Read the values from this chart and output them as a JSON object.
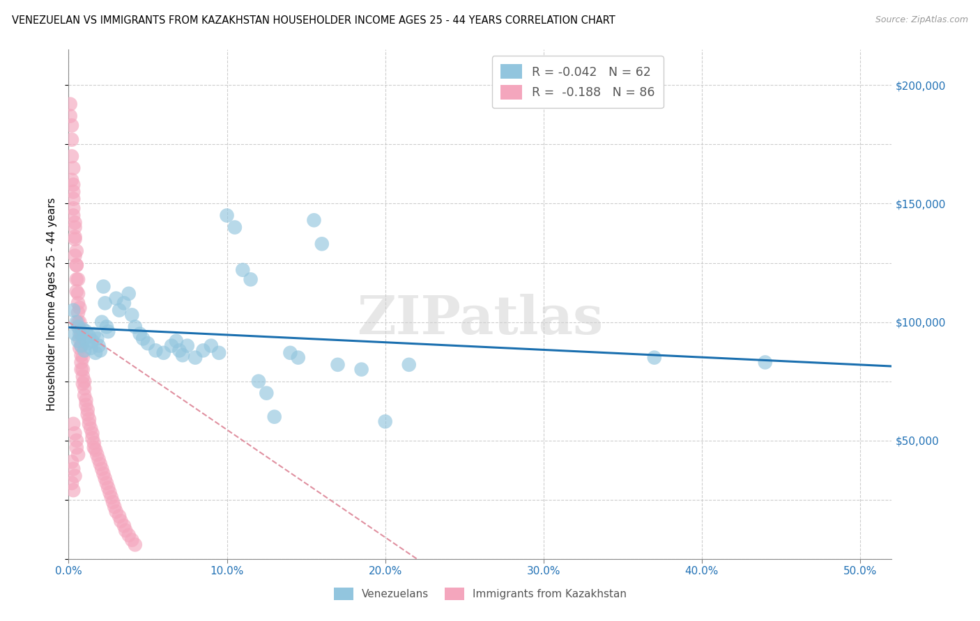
{
  "title": "VENEZUELAN VS IMMIGRANTS FROM KAZAKHSTAN HOUSEHOLDER INCOME AGES 25 - 44 YEARS CORRELATION CHART",
  "source": "Source: ZipAtlas.com",
  "ylabel": "Householder Income Ages 25 - 44 years",
  "xlabel_ticks": [
    "0.0%",
    "10.0%",
    "20.0%",
    "30.0%",
    "40.0%",
    "50.0%"
  ],
  "xlabel_vals": [
    0.0,
    0.1,
    0.2,
    0.3,
    0.4,
    0.5
  ],
  "ytick_labels": [
    "$50,000",
    "$100,000",
    "$150,000",
    "$200,000"
  ],
  "ytick_vals": [
    50000,
    100000,
    150000,
    200000
  ],
  "xlim": [
    0.0,
    0.52
  ],
  "ylim": [
    0,
    215000
  ],
  "legend_blue_label": "R = -0.042   N = 62",
  "legend_pink_label": "R =  -0.188   N = 86",
  "legend_label_venezuelans": "Venezuelans",
  "legend_label_kazakhstan": "Immigrants from Kazakhstan",
  "blue_color": "#92c5de",
  "pink_color": "#f4a6bd",
  "trendline_blue_color": "#1a6faf",
  "trendline_pink_color": "#e08090",
  "watermark": "ZIPatlas",
  "blue_R": -0.042,
  "blue_N": 62,
  "pink_R": -0.188,
  "pink_N": 86,
  "blue_x": [
    0.003,
    0.004,
    0.005,
    0.006,
    0.006,
    0.007,
    0.008,
    0.009,
    0.01,
    0.01,
    0.011,
    0.012,
    0.013,
    0.014,
    0.015,
    0.016,
    0.017,
    0.018,
    0.019,
    0.02,
    0.021,
    0.022,
    0.023,
    0.024,
    0.025,
    0.03,
    0.032,
    0.035,
    0.038,
    0.04,
    0.042,
    0.045,
    0.047,
    0.05,
    0.055,
    0.06,
    0.065,
    0.068,
    0.07,
    0.072,
    0.075,
    0.08,
    0.085,
    0.09,
    0.095,
    0.1,
    0.105,
    0.11,
    0.115,
    0.12,
    0.125,
    0.13,
    0.14,
    0.145,
    0.155,
    0.16,
    0.17,
    0.185,
    0.2,
    0.215,
    0.37,
    0.44
  ],
  "blue_y": [
    105000,
    95000,
    100000,
    92000,
    98000,
    95000,
    90000,
    97000,
    93000,
    88000,
    96000,
    91000,
    94000,
    89000,
    92000,
    95000,
    87000,
    93000,
    90000,
    88000,
    100000,
    115000,
    108000,
    98000,
    96000,
    110000,
    105000,
    108000,
    112000,
    103000,
    98000,
    95000,
    93000,
    91000,
    88000,
    87000,
    90000,
    92000,
    88000,
    86000,
    90000,
    85000,
    88000,
    90000,
    87000,
    145000,
    140000,
    122000,
    118000,
    75000,
    70000,
    60000,
    87000,
    85000,
    143000,
    133000,
    82000,
    80000,
    58000,
    82000,
    85000,
    83000
  ],
  "pink_x": [
    0.001,
    0.001,
    0.002,
    0.002,
    0.002,
    0.003,
    0.003,
    0.003,
    0.003,
    0.004,
    0.004,
    0.004,
    0.005,
    0.005,
    0.005,
    0.006,
    0.006,
    0.006,
    0.007,
    0.007,
    0.007,
    0.008,
    0.008,
    0.008,
    0.009,
    0.009,
    0.01,
    0.01,
    0.011,
    0.011,
    0.012,
    0.012,
    0.013,
    0.013,
    0.014,
    0.015,
    0.015,
    0.016,
    0.016,
    0.017,
    0.018,
    0.019,
    0.02,
    0.021,
    0.022,
    0.023,
    0.024,
    0.025,
    0.026,
    0.027,
    0.028,
    0.029,
    0.03,
    0.032,
    0.033,
    0.035,
    0.036,
    0.038,
    0.04,
    0.042,
    0.002,
    0.003,
    0.003,
    0.004,
    0.004,
    0.005,
    0.005,
    0.006,
    0.006,
    0.007,
    0.007,
    0.008,
    0.008,
    0.009,
    0.009,
    0.01,
    0.003,
    0.004,
    0.005,
    0.005,
    0.006,
    0.002,
    0.003,
    0.004,
    0.002,
    0.003
  ],
  "pink_y": [
    192000,
    187000,
    183000,
    177000,
    170000,
    165000,
    158000,
    152000,
    145000,
    140000,
    135000,
    128000,
    124000,
    118000,
    113000,
    108000,
    104000,
    100000,
    97000,
    93000,
    89000,
    86000,
    83000,
    80000,
    77000,
    74000,
    72000,
    69000,
    67000,
    65000,
    63000,
    61000,
    59000,
    57000,
    55000,
    53000,
    51000,
    49000,
    47000,
    46000,
    44000,
    42000,
    40000,
    38000,
    36000,
    34000,
    32000,
    30000,
    28000,
    26000,
    24000,
    22000,
    20000,
    18000,
    16000,
    14000,
    12000,
    10000,
    8000,
    6000,
    160000,
    155000,
    148000,
    142000,
    136000,
    130000,
    124000,
    118000,
    112000,
    106000,
    100000,
    95000,
    90000,
    85000,
    80000,
    75000,
    57000,
    53000,
    50000,
    47000,
    44000,
    41000,
    38000,
    35000,
    32000,
    29000
  ]
}
